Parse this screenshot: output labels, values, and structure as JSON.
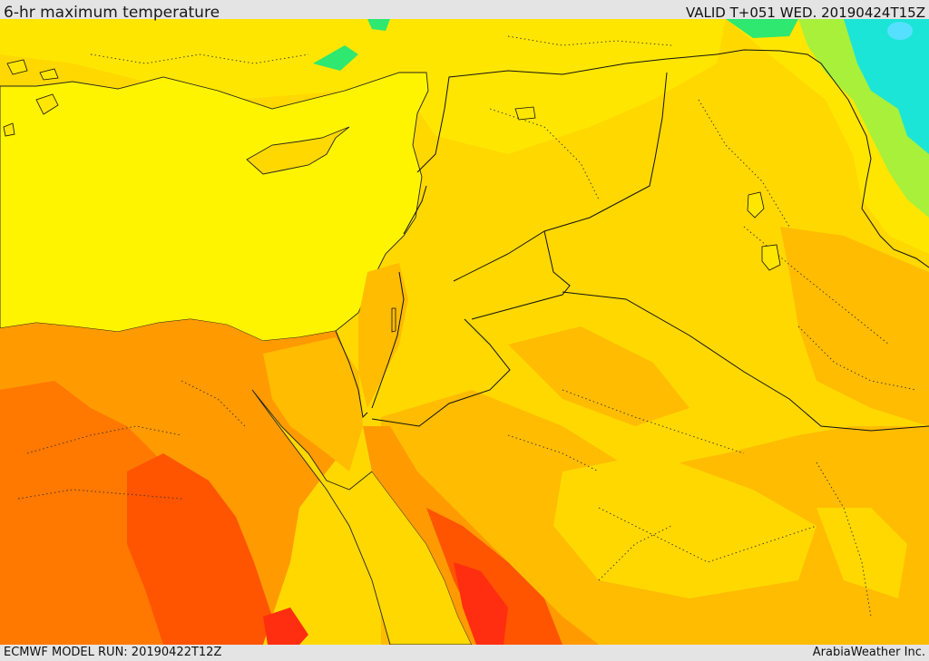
{
  "header": {
    "title": "6-hr maximum temperature",
    "valid": "VALID T+051 WED. 20190424T15Z"
  },
  "footer": {
    "model_run": "ECMWF MODEL RUN: 20190422T12Z",
    "brand": "ArabiaWeather Inc."
  },
  "map": {
    "field": "6-hr maximum temperature",
    "palette": {
      "cool_green": "#2ee870",
      "light_green": "#a8f03a",
      "cyan": "#1be5d6",
      "yellow": "#fff400",
      "gold": "#ffd800",
      "amber": "#ffbc00",
      "orange": "#ff9a00",
      "dark_orange": "#ff7800",
      "red_orange": "#ff5400",
      "red": "#ff2e10"
    },
    "line_styles": {
      "coastline": "solid",
      "country_border": "solid",
      "province_border": "dotted"
    }
  }
}
